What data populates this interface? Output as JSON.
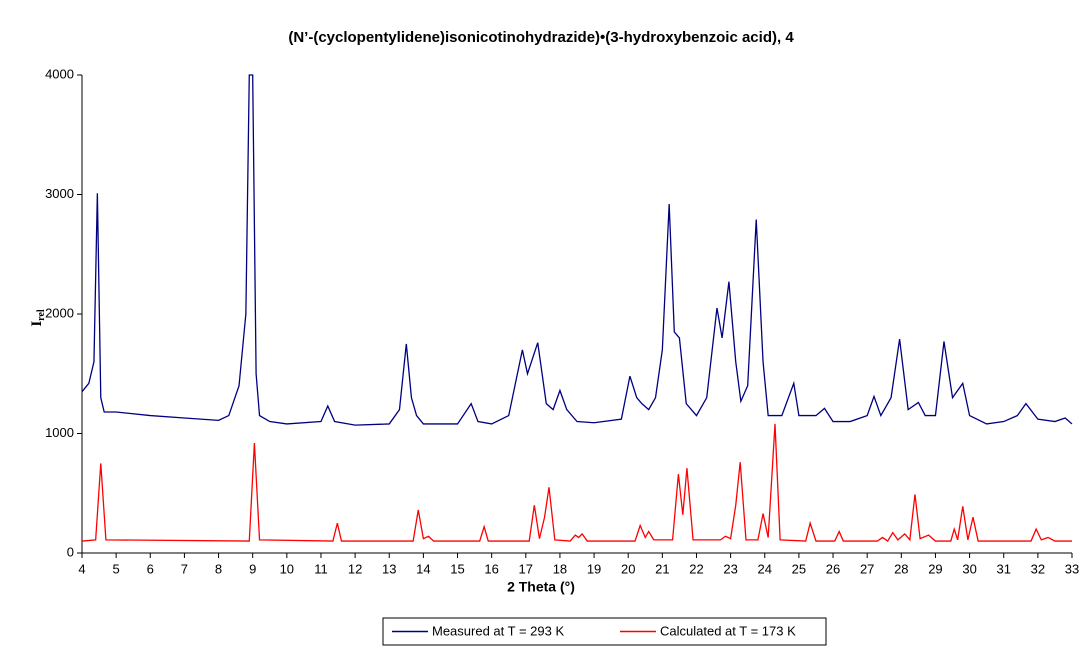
{
  "chart_data": {
    "type": "line",
    "title": "(N’-(cyclopentylidene)isonicotinohydrazide)•(3-hydroxybenzoic acid), 4",
    "xlabel": "2 Theta (°)",
    "ylabel": "I",
    "ylabel_subscript": "rel",
    "xlim": [
      4,
      33
    ],
    "ylim": [
      0,
      4000
    ],
    "xticks": [
      4,
      5,
      6,
      7,
      8,
      9,
      10,
      11,
      12,
      13,
      14,
      15,
      16,
      17,
      18,
      19,
      20,
      21,
      22,
      23,
      24,
      25,
      26,
      27,
      28,
      29,
      30,
      31,
      32,
      33
    ],
    "yticks": [
      0,
      1000,
      2000,
      3000,
      4000
    ],
    "grid": false,
    "legend": "bottom",
    "series": [
      {
        "name": "Measured at T = 293 K",
        "color": "#000080",
        "x": [
          4,
          4.2,
          4.35,
          4.45,
          4.55,
          4.65,
          5,
          6,
          7,
          8,
          8.3,
          8.6,
          8.8,
          8.9,
          9.0,
          9.1,
          9.2,
          9.5,
          10,
          11,
          11.2,
          11.4,
          12,
          13,
          13.3,
          13.5,
          13.65,
          13.8,
          14,
          15,
          15.4,
          15.6,
          16,
          16.5,
          16.9,
          17.05,
          17.35,
          17.6,
          17.8,
          18,
          18.2,
          18.5,
          19,
          19.8,
          20.05,
          20.25,
          20.4,
          20.6,
          20.8,
          21,
          21.2,
          21.35,
          21.5,
          21.7,
          22,
          22.3,
          22.6,
          22.75,
          22.95,
          23.15,
          23.3,
          23.5,
          23.75,
          23.95,
          24.1,
          24.5,
          24.85,
          25,
          25.5,
          25.75,
          26,
          26.5,
          27,
          27.2,
          27.4,
          27.7,
          27.95,
          28.2,
          28.5,
          28.7,
          29,
          29.25,
          29.5,
          29.8,
          30,
          30.5,
          31,
          31.4,
          31.65,
          32,
          32.5,
          32.8,
          33
        ],
        "values": [
          1350,
          1420,
          1600,
          3010,
          1300,
          1180,
          1180,
          1150,
          1130,
          1110,
          1150,
          1400,
          2000,
          4000,
          4000,
          1500,
          1150,
          1100,
          1080,
          1100,
          1230,
          1100,
          1070,
          1080,
          1200,
          1750,
          1300,
          1150,
          1080,
          1080,
          1250,
          1100,
          1080,
          1150,
          1700,
          1500,
          1760,
          1250,
          1200,
          1360,
          1200,
          1100,
          1090,
          1120,
          1480,
          1300,
          1250,
          1200,
          1300,
          1700,
          2920,
          1850,
          1800,
          1250,
          1150,
          1300,
          2050,
          1800,
          2270,
          1600,
          1270,
          1400,
          2790,
          1600,
          1150,
          1150,
          1420,
          1150,
          1150,
          1210,
          1100,
          1100,
          1150,
          1310,
          1150,
          1300,
          1790,
          1200,
          1260,
          1150,
          1150,
          1770,
          1300,
          1420,
          1150,
          1080,
          1100,
          1150,
          1250,
          1120,
          1100,
          1130,
          1080
        ]
      },
      {
        "name": "Calculated at T = 173 K",
        "color": "#ff0000",
        "x": [
          4,
          4.4,
          4.55,
          4.7,
          8.9,
          9.05,
          9.2,
          11.35,
          11.48,
          11.6,
          13.7,
          13.85,
          14,
          14.15,
          14.3,
          15.65,
          15.78,
          15.9,
          17.1,
          17.25,
          17.4,
          17.55,
          17.68,
          17.85,
          18.3,
          18.45,
          18.55,
          18.65,
          18.8,
          20.2,
          20.35,
          20.5,
          20.6,
          20.75,
          21.3,
          21.47,
          21.6,
          21.72,
          21.9,
          22.7,
          22.85,
          23.0,
          23.15,
          23.28,
          23.45,
          23.8,
          23.95,
          24.1,
          24.3,
          24.45,
          25.2,
          25.33,
          25.5,
          26.05,
          26.18,
          26.3,
          27.3,
          27.45,
          27.6,
          27.75,
          27.9,
          28.1,
          28.25,
          28.4,
          28.55,
          28.8,
          29.0,
          29.45,
          29.55,
          29.65,
          29.8,
          29.95,
          30.1,
          30.25,
          31.8,
          31.95,
          32.1,
          32.3,
          32.5,
          33
        ],
        "values": [
          100,
          110,
          750,
          110,
          100,
          920,
          110,
          100,
          250,
          100,
          100,
          360,
          120,
          140,
          100,
          100,
          220,
          100,
          100,
          400,
          120,
          300,
          550,
          110,
          100,
          150,
          130,
          160,
          100,
          100,
          230,
          130,
          180,
          110,
          110,
          660,
          320,
          710,
          110,
          110,
          140,
          120,
          400,
          760,
          110,
          110,
          330,
          130,
          1080,
          110,
          100,
          250,
          100,
          100,
          180,
          100,
          100,
          130,
          100,
          170,
          110,
          160,
          110,
          490,
          120,
          150,
          100,
          100,
          200,
          110,
          390,
          110,
          300,
          100,
          100,
          200,
          110,
          130,
          100,
          100
        ]
      }
    ]
  }
}
